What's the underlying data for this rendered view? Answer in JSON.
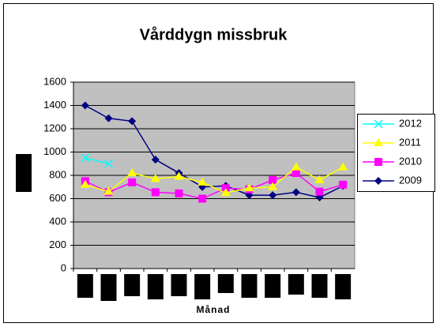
{
  "chart_data": {
    "type": "line",
    "title": "Vårddygn missbruk",
    "x_label": "Månad",
    "categories": [
      null,
      null,
      null,
      null,
      null,
      null,
      null,
      null,
      null,
      null,
      null,
      null
    ],
    "ylim": [
      0,
      1600
    ],
    "yticks": [
      0,
      200,
      400,
      600,
      800,
      1000,
      1200,
      1400,
      1600
    ],
    "grid": true,
    "legend": "right",
    "series": [
      {
        "name": "2012",
        "color": "#00ffff",
        "marker": "x",
        "values": [
          950,
          900,
          null,
          null,
          null,
          null,
          null,
          null,
          null,
          null,
          null,
          null
        ]
      },
      {
        "name": "2011",
        "color": "#ffff00",
        "marker": "triangle",
        "values": [
          720,
          660,
          820,
          770,
          790,
          740,
          650,
          690,
          700,
          870,
          760,
          870
        ]
      },
      {
        "name": "2010",
        "color": "#ff00ff",
        "marker": "square",
        "values": [
          750,
          655,
          740,
          655,
          645,
          600,
          690,
          680,
          760,
          820,
          660,
          720
        ]
      },
      {
        "name": "2009",
        "color": "#000080",
        "marker": "diamond",
        "values": [
          1400,
          1290,
          1265,
          935,
          820,
          700,
          710,
          630,
          630,
          655,
          610,
          710
        ]
      }
    ]
  }
}
